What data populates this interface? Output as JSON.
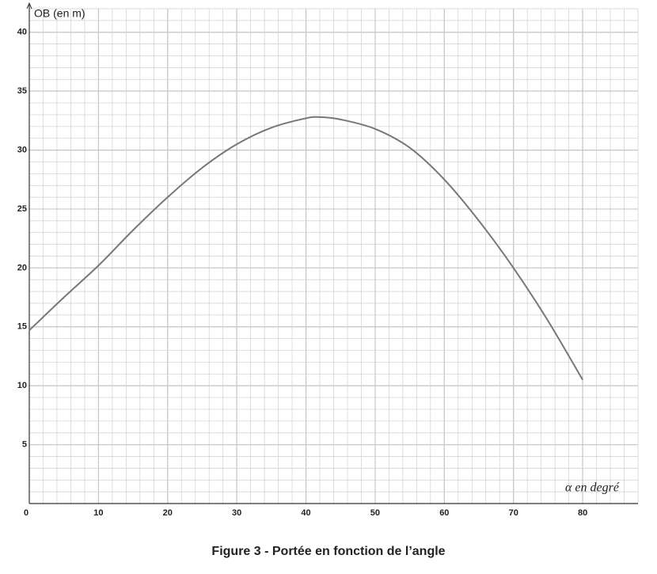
{
  "chart_data": {
    "type": "line",
    "title": "Figure 3 - Portée en fonction de l’angle",
    "x_label": "α en degré",
    "y_label": "OB (en m)",
    "x": [
      0,
      5,
      10,
      15,
      20,
      25,
      30,
      35,
      40,
      42,
      45,
      50,
      55,
      60,
      65,
      70,
      75,
      80
    ],
    "values": [
      14.7,
      17.5,
      20.2,
      23.2,
      26,
      28.5,
      30.5,
      31.9,
      32.7,
      32.8,
      32.6,
      31.8,
      30.2,
      27.5,
      24,
      20,
      15.5,
      10.5
    ],
    "color": "#777777",
    "xlim": [
      0,
      88
    ],
    "ylim": [
      0,
      42
    ],
    "xticks": [
      0,
      10,
      20,
      30,
      40,
      50,
      60,
      70,
      80
    ],
    "yticks": [
      5,
      10,
      15,
      20,
      25,
      30,
      35,
      40
    ],
    "grid": true,
    "minor_grid": true
  }
}
